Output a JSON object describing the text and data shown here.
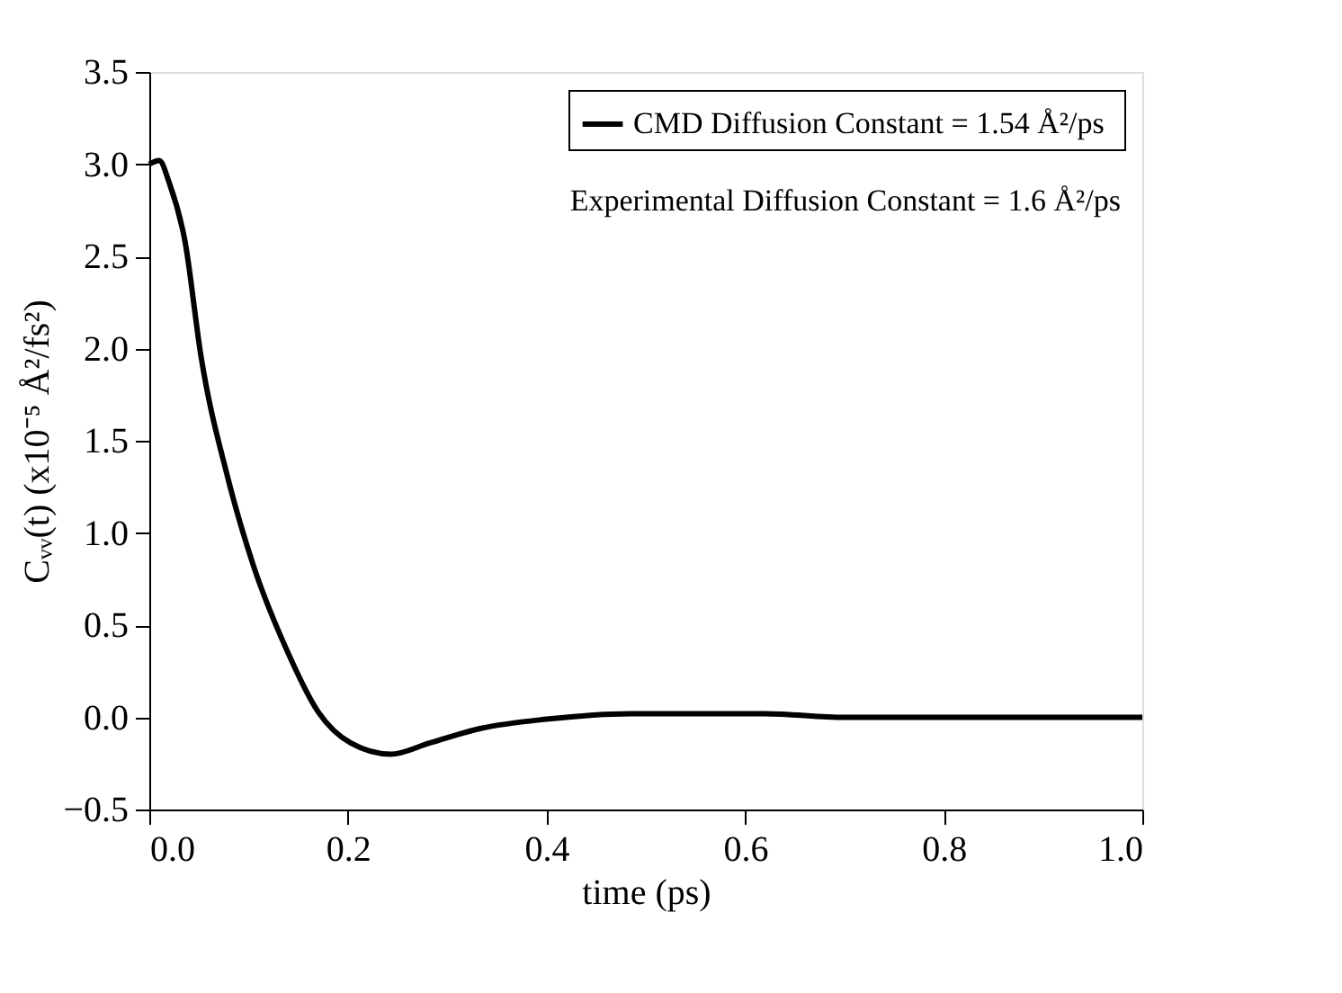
{
  "chart_data": {
    "type": "line",
    "xlabel": "time (ps)",
    "ylabel": "Cᵥᵥ(t)  (x10⁻⁵ Å²/fs²)",
    "xlim": [
      0,
      1
    ],
    "xticks": [
      {
        "value": 0,
        "label": "0.0"
      },
      0.2,
      0.4,
      0.6,
      0.8,
      {
        "value": 1,
        "label": "1.0"
      }
    ],
    "ylim": [
      -0.5,
      3.5
    ],
    "yticks": [
      -0.5,
      {
        "value": 0,
        "label": "0.0"
      },
      0.5,
      {
        "value": 1,
        "label": "1.0"
      },
      1.5,
      {
        "value": 2,
        "label": "2.0"
      },
      2.5,
      {
        "value": 3,
        "label": "3.0"
      },
      3.5
    ],
    "grid": false,
    "legend": "top right",
    "marker": "none",
    "line_style": "solid",
    "annotations": [
      "Experimental Diffusion Constant = 1.6 Å²/ps"
    ],
    "series": [
      {
        "name": "CMD Diffusion Constant  = 1.54 Å²/ps",
        "color": "#000000",
        "x": [
          0,
          0.01,
          0.02,
          0.036,
          0.052,
          0.079,
          0.105,
          0.138,
          0.17,
          0.203,
          0.243,
          0.282,
          0.334,
          0.4,
          0.485,
          0.55,
          0.62,
          0.7,
          0.8,
          0.9,
          1.0
        ],
        "values": [
          3.0,
          3.02,
          2.9,
          2.58,
          1.96,
          1.3,
          0.82,
          0.37,
          0.03,
          -0.14,
          -0.2,
          -0.14,
          -0.06,
          -0.01,
          0.02,
          0.02,
          0.02,
          0.0,
          0.0,
          0.0,
          0.0
        ]
      }
    ]
  }
}
